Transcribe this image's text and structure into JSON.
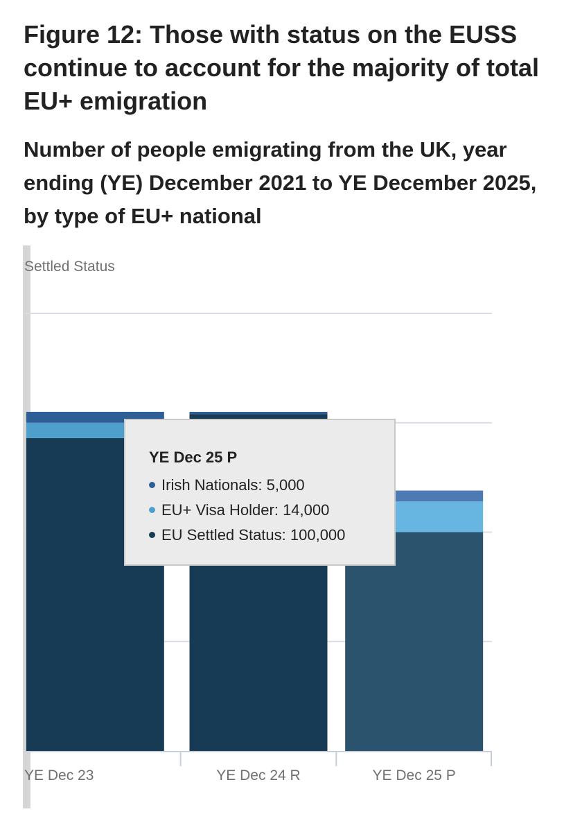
{
  "title": "Figure 12: Those with status on the EUSS continue to account for the majority of total EU+ emigration",
  "subtitle": "Number of people emigrating from the UK, year ending (YE) December 2021 to YE December 2025, by type of EU+ national",
  "legend_partial_label": "Settled Status",
  "colors": {
    "irish_nationals": "#2f5d96",
    "eu_visa_holder": "#4f9fcc",
    "eu_settled_status": "#183b55",
    "eu_settled_status_highlight": "#2c536e",
    "irish_nationals_highlight": "#4d79b4",
    "eu_visa_holder_highlight": "#67b6e1",
    "gridline": "#dcdce6",
    "axis": "#c7cedb"
  },
  "tooltip": {
    "title": "YE Dec 25 P",
    "rows": [
      {
        "label": "Irish Nationals: 5,000",
        "color": "#2f5d96"
      },
      {
        "label": "EU+ Visa Holder: 14,000",
        "color": "#4f9fcc"
      },
      {
        "label": "EU Settled Status: 100,000",
        "color": "#183b55"
      }
    ]
  },
  "chart_data": {
    "type": "bar",
    "stacked": true,
    "categories": [
      "YE Dec 23",
      "YE Dec 24 R",
      "YE Dec 25 P"
    ],
    "series": [
      {
        "name": "EU Settled Status",
        "values": [
          143000,
          154000,
          100000
        ]
      },
      {
        "name": "EU+ Visa Holder",
        "values": [
          7000,
          0,
          14000
        ]
      },
      {
        "name": "Irish Nationals",
        "values": [
          5000,
          1000,
          5000
        ]
      }
    ],
    "ylim": [
      0,
      200000
    ],
    "gridline_values": [
      50000,
      100000,
      150000,
      200000
    ],
    "y_tick_labels_visible": false,
    "grid": true,
    "highlighted_category": "YE Dec 25 P"
  }
}
